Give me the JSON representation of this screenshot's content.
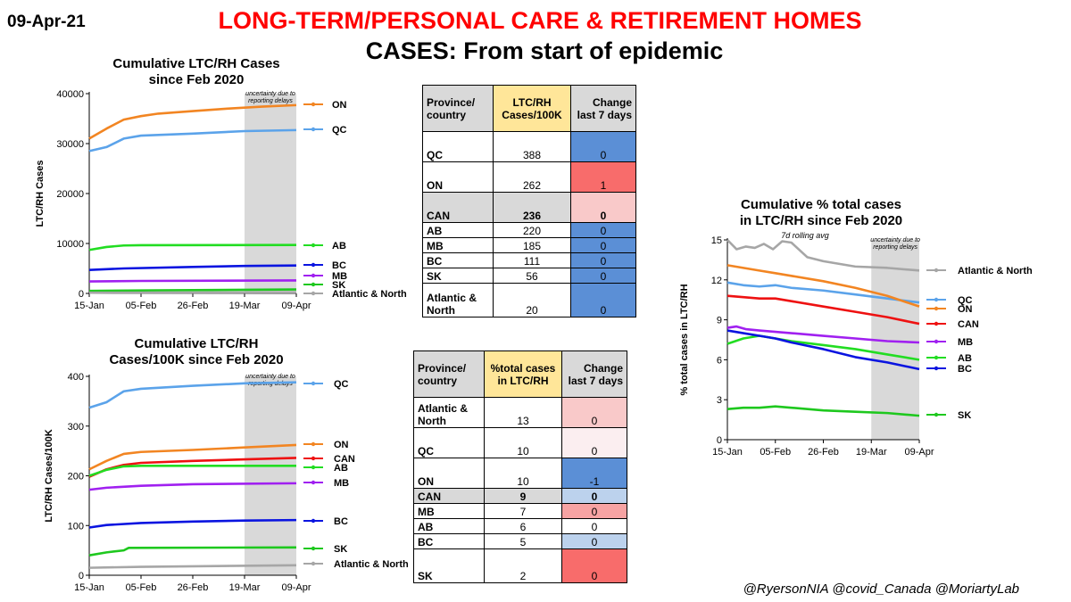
{
  "header": {
    "date": "09-Apr-21",
    "title_line1": "LONG-TERM/PERSONAL  CARE & RETIREMENT HOMES",
    "title_line2": "CASES: From start of epidemic"
  },
  "credit": "@RyersonNIA @covid_Canada @MoriartyLab",
  "colors": {
    "ON": "#f28522",
    "QC": "#5ba3ea",
    "AB": "#22dd22",
    "BC": "#0a14e0",
    "MB": "#a020f0",
    "SK": "#1ec81e",
    "Atlantic & North": "#a6a6a6",
    "CAN": "#ee1111",
    "shade": "#d9d9d9",
    "title_red": "#ff0000",
    "hdr_yellow": "#ffe699",
    "hdr_grey": "#d9d9d9",
    "cell_blue": "#5b8fd6",
    "cell_red": "#f86c6b",
    "cell_pink": "#f9c9c9",
    "cell_lightblue": "#bcd2ed",
    "cell_lightred": "#f6a3a3",
    "cell_verylight": "#fbeef0"
  },
  "chart_data": [
    {
      "id": "chart1",
      "type": "line",
      "title": "Cumulative LTC/RH Cases since Feb 2020",
      "title_lines": [
        "Cumulative LTC/RH Cases",
        "since Feb 2020"
      ],
      "xlabel": "",
      "ylabel": "LTC/RH Cases",
      "x_ticks": [
        "15-Jan",
        "05-Feb",
        "26-Feb",
        "19-Mar",
        "09-Apr"
      ],
      "x_range_days": [
        0,
        84
      ],
      "ylim": [
        0,
        40000
      ],
      "y_ticks": [
        0,
        10000,
        20000,
        30000,
        40000
      ],
      "shaded_region_days": [
        63,
        84
      ],
      "shaded_label": "uncertainty due to reporting delays",
      "series": [
        {
          "name": "ON",
          "label": "ON",
          "x": [
            0,
            7,
            14,
            21,
            28,
            42,
            56,
            70,
            84
          ],
          "y": [
            31000,
            33000,
            34800,
            35500,
            36000,
            36500,
            37000,
            37400,
            37700
          ]
        },
        {
          "name": "QC",
          "label": "QC",
          "x": [
            0,
            7,
            14,
            21,
            42,
            63,
            84
          ],
          "y": [
            28500,
            29300,
            31000,
            31600,
            32000,
            32500,
            32700
          ]
        },
        {
          "name": "AB",
          "label": "AB",
          "x": [
            0,
            7,
            14,
            21,
            84
          ],
          "y": [
            8700,
            9300,
            9600,
            9650,
            9700
          ]
        },
        {
          "name": "BC",
          "label": "BC",
          "x": [
            0,
            14,
            42,
            63,
            84
          ],
          "y": [
            4700,
            5000,
            5300,
            5500,
            5600
          ]
        },
        {
          "name": "MB",
          "label": "MB",
          "x": [
            0,
            21,
            84
          ],
          "y": [
            2400,
            2500,
            2600
          ]
        },
        {
          "name": "SK",
          "label": "SK",
          "x": [
            0,
            21,
            84
          ],
          "y": [
            500,
            600,
            800
          ]
        },
        {
          "name": "Atlantic & North",
          "label": "Atlantic & North",
          "x": [
            0,
            84
          ],
          "y": [
            150,
            220
          ]
        }
      ]
    },
    {
      "id": "chart2",
      "type": "line",
      "title": "Cumulative LTC/RH Cases/100K since Feb 2020",
      "title_lines": [
        "Cumulative LTC/RH",
        "Cases/100K since Feb 2020"
      ],
      "xlabel": "",
      "ylabel": "LTC/RH Cases/100K",
      "x_ticks": [
        "15-Jan",
        "05-Feb",
        "26-Feb",
        "19-Mar",
        "09-Apr"
      ],
      "x_range_days": [
        0,
        84
      ],
      "ylim": [
        0,
        400
      ],
      "y_ticks": [
        0,
        100,
        200,
        300,
        400
      ],
      "shaded_region_days": [
        63,
        84
      ],
      "shaded_label": "uncertainty due to reporting delays",
      "series": [
        {
          "name": "QC",
          "label": "QC",
          "x": [
            0,
            7,
            14,
            21,
            42,
            63,
            84
          ],
          "y": [
            337,
            348,
            370,
            375,
            381,
            386,
            388
          ]
        },
        {
          "name": "ON",
          "label": "ON",
          "x": [
            0,
            7,
            14,
            21,
            42,
            63,
            84
          ],
          "y": [
            213,
            230,
            244,
            248,
            252,
            257,
            262
          ]
        },
        {
          "name": "CAN",
          "label": "CAN",
          "x": [
            0,
            7,
            14,
            21,
            42,
            63,
            84
          ],
          "y": [
            198,
            213,
            222,
            226,
            230,
            233,
            236
          ]
        },
        {
          "name": "AB",
          "label": "AB",
          "x": [
            0,
            7,
            14,
            21,
            84
          ],
          "y": [
            200,
            212,
            219,
            220,
            220
          ]
        },
        {
          "name": "MB",
          "label": "MB",
          "x": [
            0,
            7,
            21,
            42,
            84
          ],
          "y": [
            172,
            176,
            180,
            183,
            185
          ]
        },
        {
          "name": "BC",
          "label": "BC",
          "x": [
            0,
            7,
            21,
            42,
            63,
            84
          ],
          "y": [
            96,
            101,
            105,
            108,
            110,
            111
          ]
        },
        {
          "name": "SK",
          "label": "SK",
          "x": [
            0,
            7,
            14,
            16,
            84
          ],
          "y": [
            40,
            46,
            50,
            55,
            56
          ]
        },
        {
          "name": "Atlantic & North",
          "label": "Atlantic & North",
          "x": [
            0,
            21,
            84
          ],
          "y": [
            15,
            17,
            20
          ]
        }
      ]
    },
    {
      "id": "chart3",
      "type": "line",
      "title": "Cumulative % total cases in LTC/RH since Feb 2020",
      "title_lines": [
        "Cumulative % total cases",
        "in LTC/RH since Feb 2020"
      ],
      "subtitle": "7d rolling avg",
      "xlabel": "",
      "ylabel": "% total cases in LTC/RH",
      "x_ticks": [
        "15-Jan",
        "05-Feb",
        "26-Feb",
        "19-Mar",
        "09-Apr"
      ],
      "x_range_days": [
        0,
        84
      ],
      "ylim": [
        0,
        15
      ],
      "y_ticks": [
        0,
        3,
        6,
        9,
        12,
        15
      ],
      "shaded_region_days": [
        63,
        84
      ],
      "shaded_label": "uncertainty due to reporting delays",
      "series": [
        {
          "name": "Atlantic & North",
          "label": "Atlantic & North",
          "x": [
            0,
            4,
            8,
            12,
            16,
            20,
            24,
            28,
            35,
            42,
            56,
            70,
            84
          ],
          "y": [
            15.0,
            14.3,
            14.5,
            14.4,
            14.7,
            14.3,
            14.9,
            14.8,
            13.7,
            13.4,
            13.0,
            12.9,
            12.7
          ]
        },
        {
          "name": "QC",
          "label": "QC",
          "x": [
            0,
            7,
            14,
            21,
            28,
            42,
            56,
            70,
            84
          ],
          "y": [
            11.8,
            11.6,
            11.5,
            11.6,
            11.4,
            11.2,
            10.9,
            10.6,
            10.3
          ]
        },
        {
          "name": "ON",
          "label": "ON",
          "x": [
            0,
            7,
            14,
            21,
            28,
            42,
            56,
            70,
            84
          ],
          "y": [
            13.1,
            12.9,
            12.7,
            12.5,
            12.3,
            11.9,
            11.4,
            10.8,
            10.0
          ]
        },
        {
          "name": "CAN",
          "label": "CAN",
          "x": [
            0,
            7,
            14,
            21,
            28,
            42,
            56,
            70,
            84
          ],
          "y": [
            10.8,
            10.7,
            10.6,
            10.6,
            10.4,
            10.0,
            9.6,
            9.2,
            8.7
          ]
        },
        {
          "name": "MB",
          "label": "MB",
          "x": [
            0,
            4,
            8,
            14,
            21,
            28,
            42,
            56,
            70,
            84
          ],
          "y": [
            8.4,
            8.5,
            8.3,
            8.2,
            8.1,
            8.0,
            7.8,
            7.6,
            7.4,
            7.3
          ]
        },
        {
          "name": "AB",
          "label": "AB",
          "x": [
            0,
            7,
            14,
            21,
            28,
            42,
            56,
            70,
            84
          ],
          "y": [
            7.2,
            7.6,
            7.8,
            7.6,
            7.4,
            7.1,
            6.8,
            6.4,
            6.0
          ]
        },
        {
          "name": "BC",
          "label": "BC",
          "x": [
            0,
            7,
            14,
            21,
            28,
            42,
            56,
            70,
            84
          ],
          "y": [
            8.2,
            8.0,
            7.8,
            7.6,
            7.3,
            6.8,
            6.2,
            5.8,
            5.3
          ]
        },
        {
          "name": "SK",
          "label": "SK",
          "x": [
            0,
            7,
            14,
            21,
            28,
            42,
            56,
            70,
            84
          ],
          "y": [
            2.3,
            2.4,
            2.4,
            2.5,
            2.4,
            2.2,
            2.1,
            2.0,
            1.8
          ]
        }
      ]
    }
  ],
  "table1": {
    "headers": [
      "Province/ country",
      "LTC/RH Cases/100K",
      "Change last 7 days"
    ],
    "rows": [
      {
        "name": "QC",
        "value": "388",
        "change": "0",
        "color": "#5b8fd6",
        "bold": false
      },
      {
        "name": "ON",
        "value": "262",
        "change": "1",
        "color": "#f86c6b",
        "bold": false
      },
      {
        "name": "CAN",
        "value": "236",
        "change": "0",
        "color": "#f9c9c9",
        "bold": true
      },
      {
        "name": "AB",
        "value": "220",
        "change": "0",
        "color": "#5b8fd6",
        "bold": false
      },
      {
        "name": "MB",
        "value": "185",
        "change": "0",
        "color": "#5b8fd6",
        "bold": false
      },
      {
        "name": "BC",
        "value": "111",
        "change": "0",
        "color": "#5b8fd6",
        "bold": false
      },
      {
        "name": "SK",
        "value": "56",
        "change": "0",
        "color": "#5b8fd6",
        "bold": false
      },
      {
        "name": "Atlantic & North",
        "value": "20",
        "change": "0",
        "color": "#5b8fd6",
        "bold": false
      }
    ]
  },
  "table2": {
    "headers": [
      "Province/ country",
      "%total cases in LTC/RH",
      "Change last 7 days"
    ],
    "rows": [
      {
        "name": "Atlantic & North",
        "value": "13",
        "change": "0",
        "color": "#f9c9c9",
        "bold": false
      },
      {
        "name": "QC",
        "value": "10",
        "change": "0",
        "color": "#fbeef0",
        "bold": false
      },
      {
        "name": "ON",
        "value": "10",
        "change": "-1",
        "color": "#5b8fd6",
        "bold": false
      },
      {
        "name": "CAN",
        "value": "9",
        "change": "0",
        "color": "#bcd2ed",
        "bold": true
      },
      {
        "name": "MB",
        "value": "7",
        "change": "0",
        "color": "#f6a3a3",
        "bold": false
      },
      {
        "name": "AB",
        "value": "6",
        "change": "0",
        "color": "#ffffff",
        "bold": false
      },
      {
        "name": "BC",
        "value": "5",
        "change": "0",
        "color": "#bcd2ed",
        "bold": false
      },
      {
        "name": "SK",
        "value": "2",
        "change": "0",
        "color": "#f86c6b",
        "bold": false
      }
    ]
  }
}
